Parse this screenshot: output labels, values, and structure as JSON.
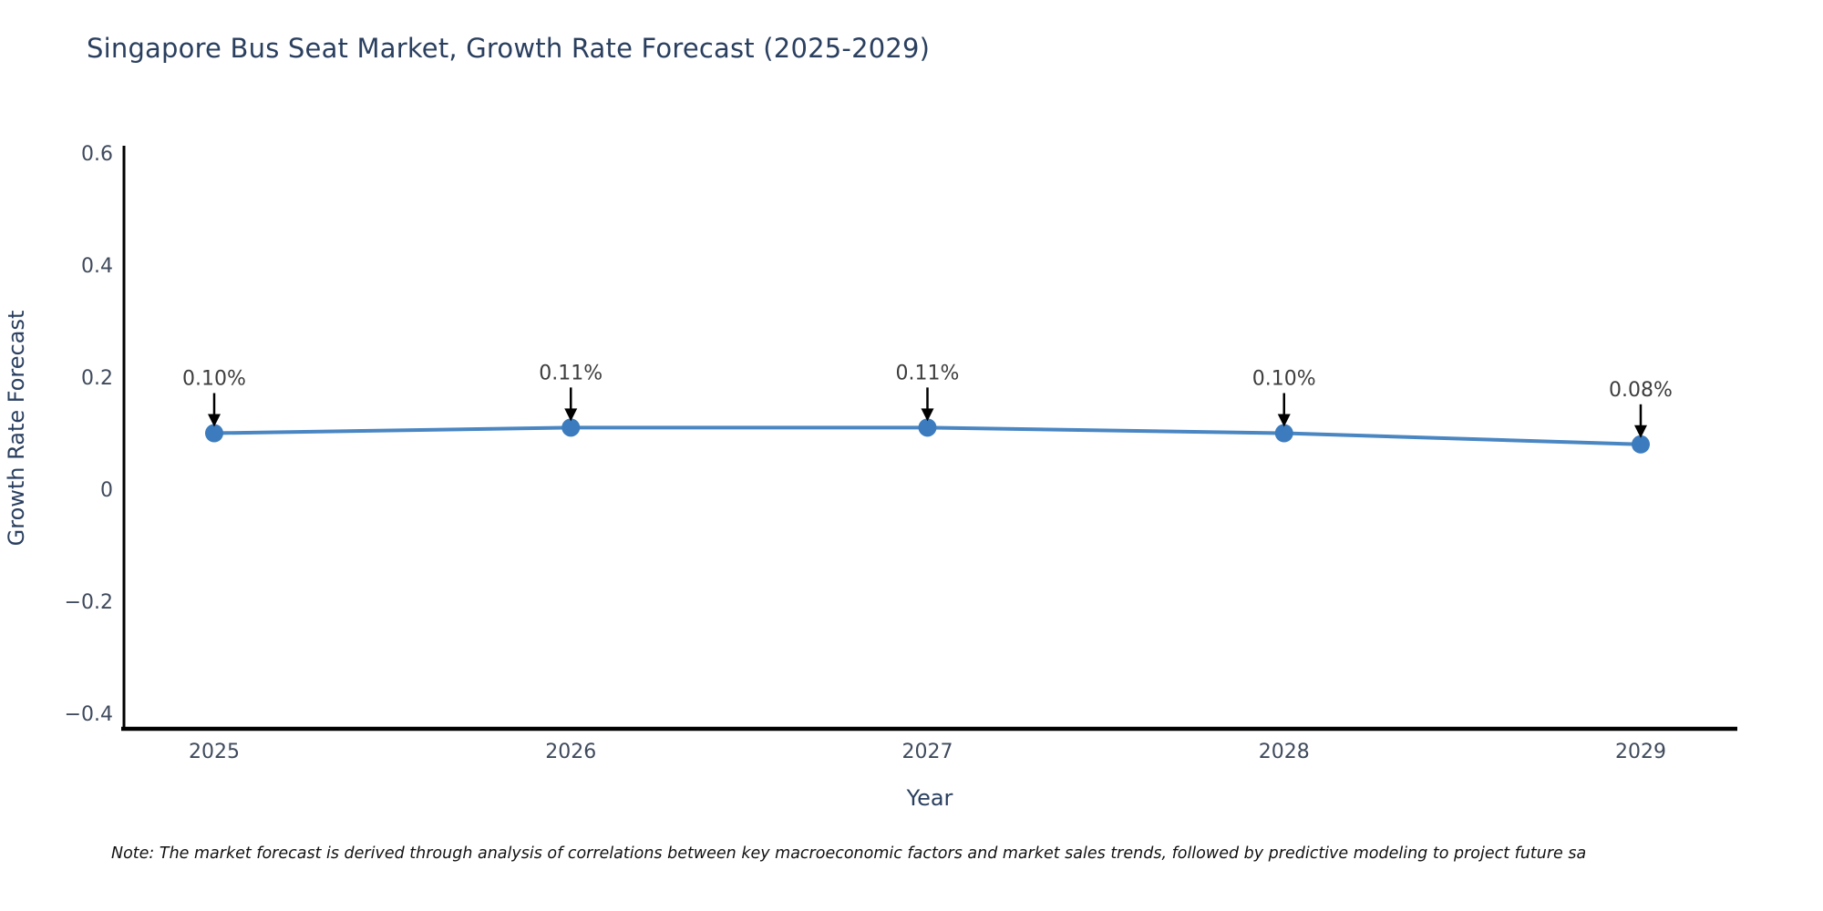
{
  "title": "Singapore Bus Seat Market, Growth Rate Forecast (2025-2029)",
  "note": "Note: The market forecast is derived through analysis of correlations between key macroeconomic factors and market sales trends, followed by predictive modeling to project future sa",
  "chart_data": {
    "type": "line",
    "title": "Singapore Bus Seat Market, Growth Rate Forecast (2025-2029)",
    "xlabel": "Year",
    "ylabel": "Growth Rate Forecast",
    "categories": [
      "2025",
      "2026",
      "2027",
      "2028",
      "2029"
    ],
    "values": [
      0.1,
      0.11,
      0.11,
      0.1,
      0.08
    ],
    "point_labels": [
      "0.10%",
      "0.11%",
      "0.11%",
      "0.10%",
      "0.08%"
    ],
    "yticks": [
      0.6,
      0.4,
      0.2,
      0,
      -0.2,
      -0.4
    ],
    "ylim": [
      -0.43,
      0.61
    ],
    "xlim_padding": "points inset from axis ends",
    "grid": false,
    "legend": false,
    "marker": "circle",
    "annotations": "value label above each point with downward black arrow"
  },
  "colors": {
    "heading": "#2a3f5f",
    "axis_title": "#2a3f5f",
    "tick": "#3f4a5c",
    "annotation_text": "#3d3d3d",
    "annotation_arrow": "#000000",
    "line": "#4a86c2",
    "marker": "#3c7cbe",
    "axis_line": "#000000",
    "note": "#111111",
    "background": "#ffffff"
  }
}
